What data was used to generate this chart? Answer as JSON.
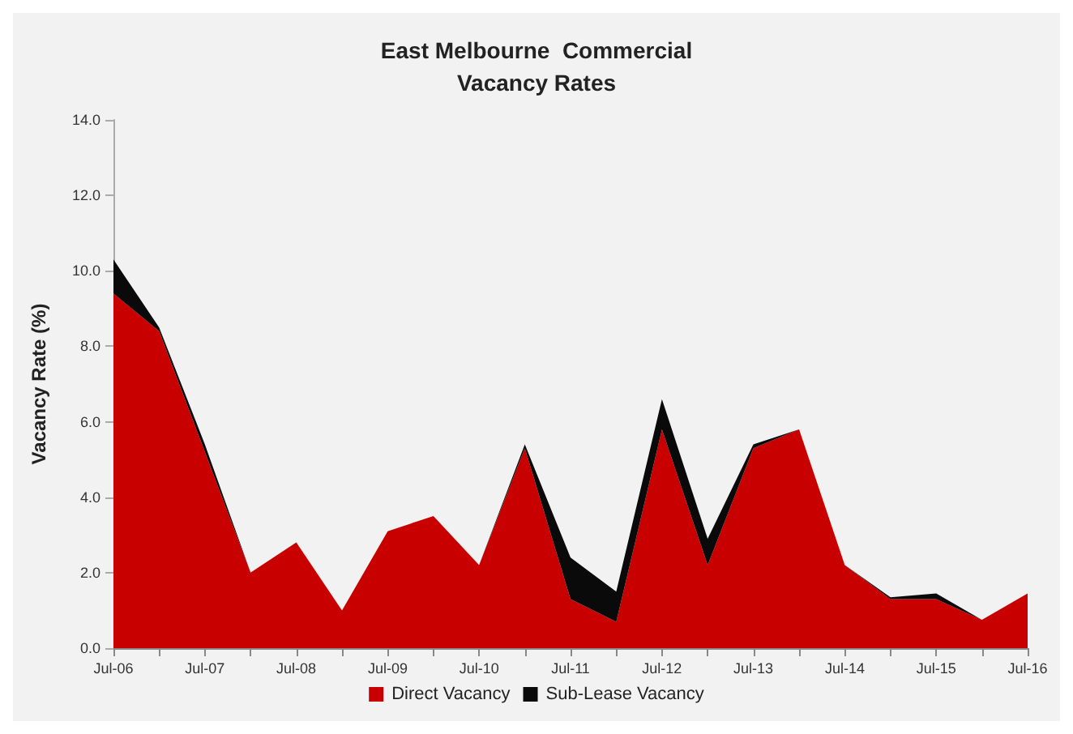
{
  "chart_data": {
    "type": "area",
    "title": "East Melbourne  Commercial\nVacancy Rates",
    "ylabel": "Vacancy Rate (%)",
    "categories": [
      "Jul-06",
      null,
      "Jul-07",
      null,
      "Jul-08",
      null,
      "Jul-09",
      null,
      "Jul-10",
      null,
      "Jul-11",
      null,
      "Jul-12",
      null,
      "Jul-13",
      null,
      "Jul-14",
      null,
      "Jul-15",
      null,
      "Jul-16"
    ],
    "stacked": true,
    "series": [
      {
        "name": "Direct Vacancy",
        "color": "#c80000",
        "values": [
          9.4,
          8.4,
          5.2,
          2.0,
          2.8,
          1.0,
          3.1,
          3.5,
          2.2,
          5.3,
          1.3,
          0.7,
          5.8,
          2.2,
          5.3,
          5.8,
          2.2,
          1.3,
          1.3,
          0.75,
          1.45
        ]
      },
      {
        "name": "Sub-Lease Vacancy",
        "color": "#0a0a0a",
        "values": [
          0.9,
          0.1,
          0.2,
          0,
          0,
          0,
          0,
          0,
          0,
          0.1,
          1.1,
          0.8,
          0.8,
          0.7,
          0.1,
          0,
          0,
          0.05,
          0.15,
          0,
          0
        ]
      }
    ],
    "ylim": [
      0,
      14
    ],
    "yticks": [
      {
        "value": 0,
        "label": "0.0"
      },
      {
        "value": 2,
        "label": "2.0"
      },
      {
        "value": 4,
        "label": "4.0"
      },
      {
        "value": 6,
        "label": "6.0"
      },
      {
        "value": 8,
        "label": "8.0"
      },
      {
        "value": 10,
        "label": "10.0"
      },
      {
        "value": 12,
        "label": "12.0"
      },
      {
        "value": 14,
        "label": "14.0"
      }
    ],
    "grid": false,
    "legend": "bottom"
  }
}
